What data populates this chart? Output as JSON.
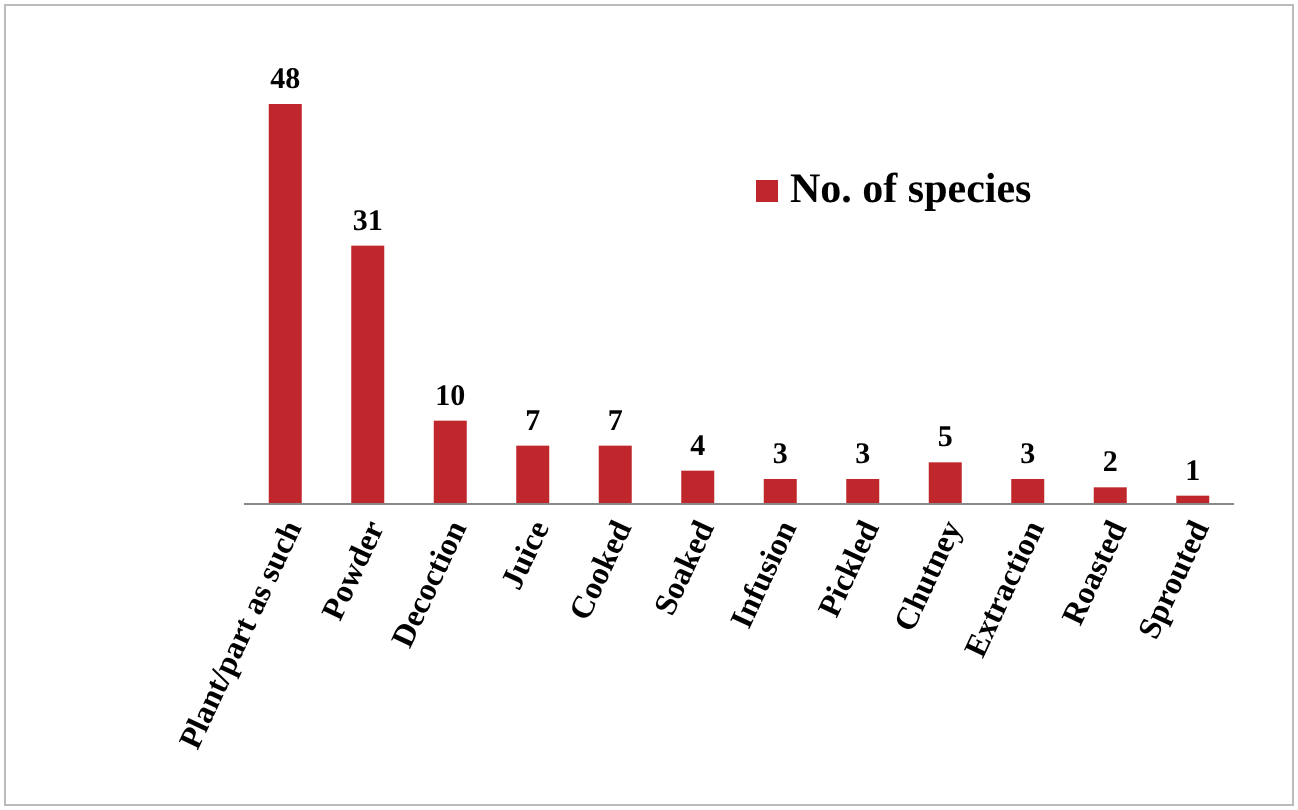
{
  "chart_data": {
    "type": "bar",
    "categories": [
      "Plant/part as such",
      "Powder",
      "Decoction",
      "Juice",
      "Cooked",
      "Soaked",
      "Infusion",
      "Pickled",
      "Chutney",
      "Extraction",
      "Roasted",
      "Sprouted"
    ],
    "series": [
      {
        "name": "No. of species",
        "color": "#c0272d",
        "values": [
          48,
          31,
          10,
          7,
          7,
          4,
          3,
          3,
          5,
          3,
          2,
          1
        ]
      }
    ],
    "data_labels": true,
    "legend": "top right",
    "ylim": [
      0,
      48
    ]
  }
}
